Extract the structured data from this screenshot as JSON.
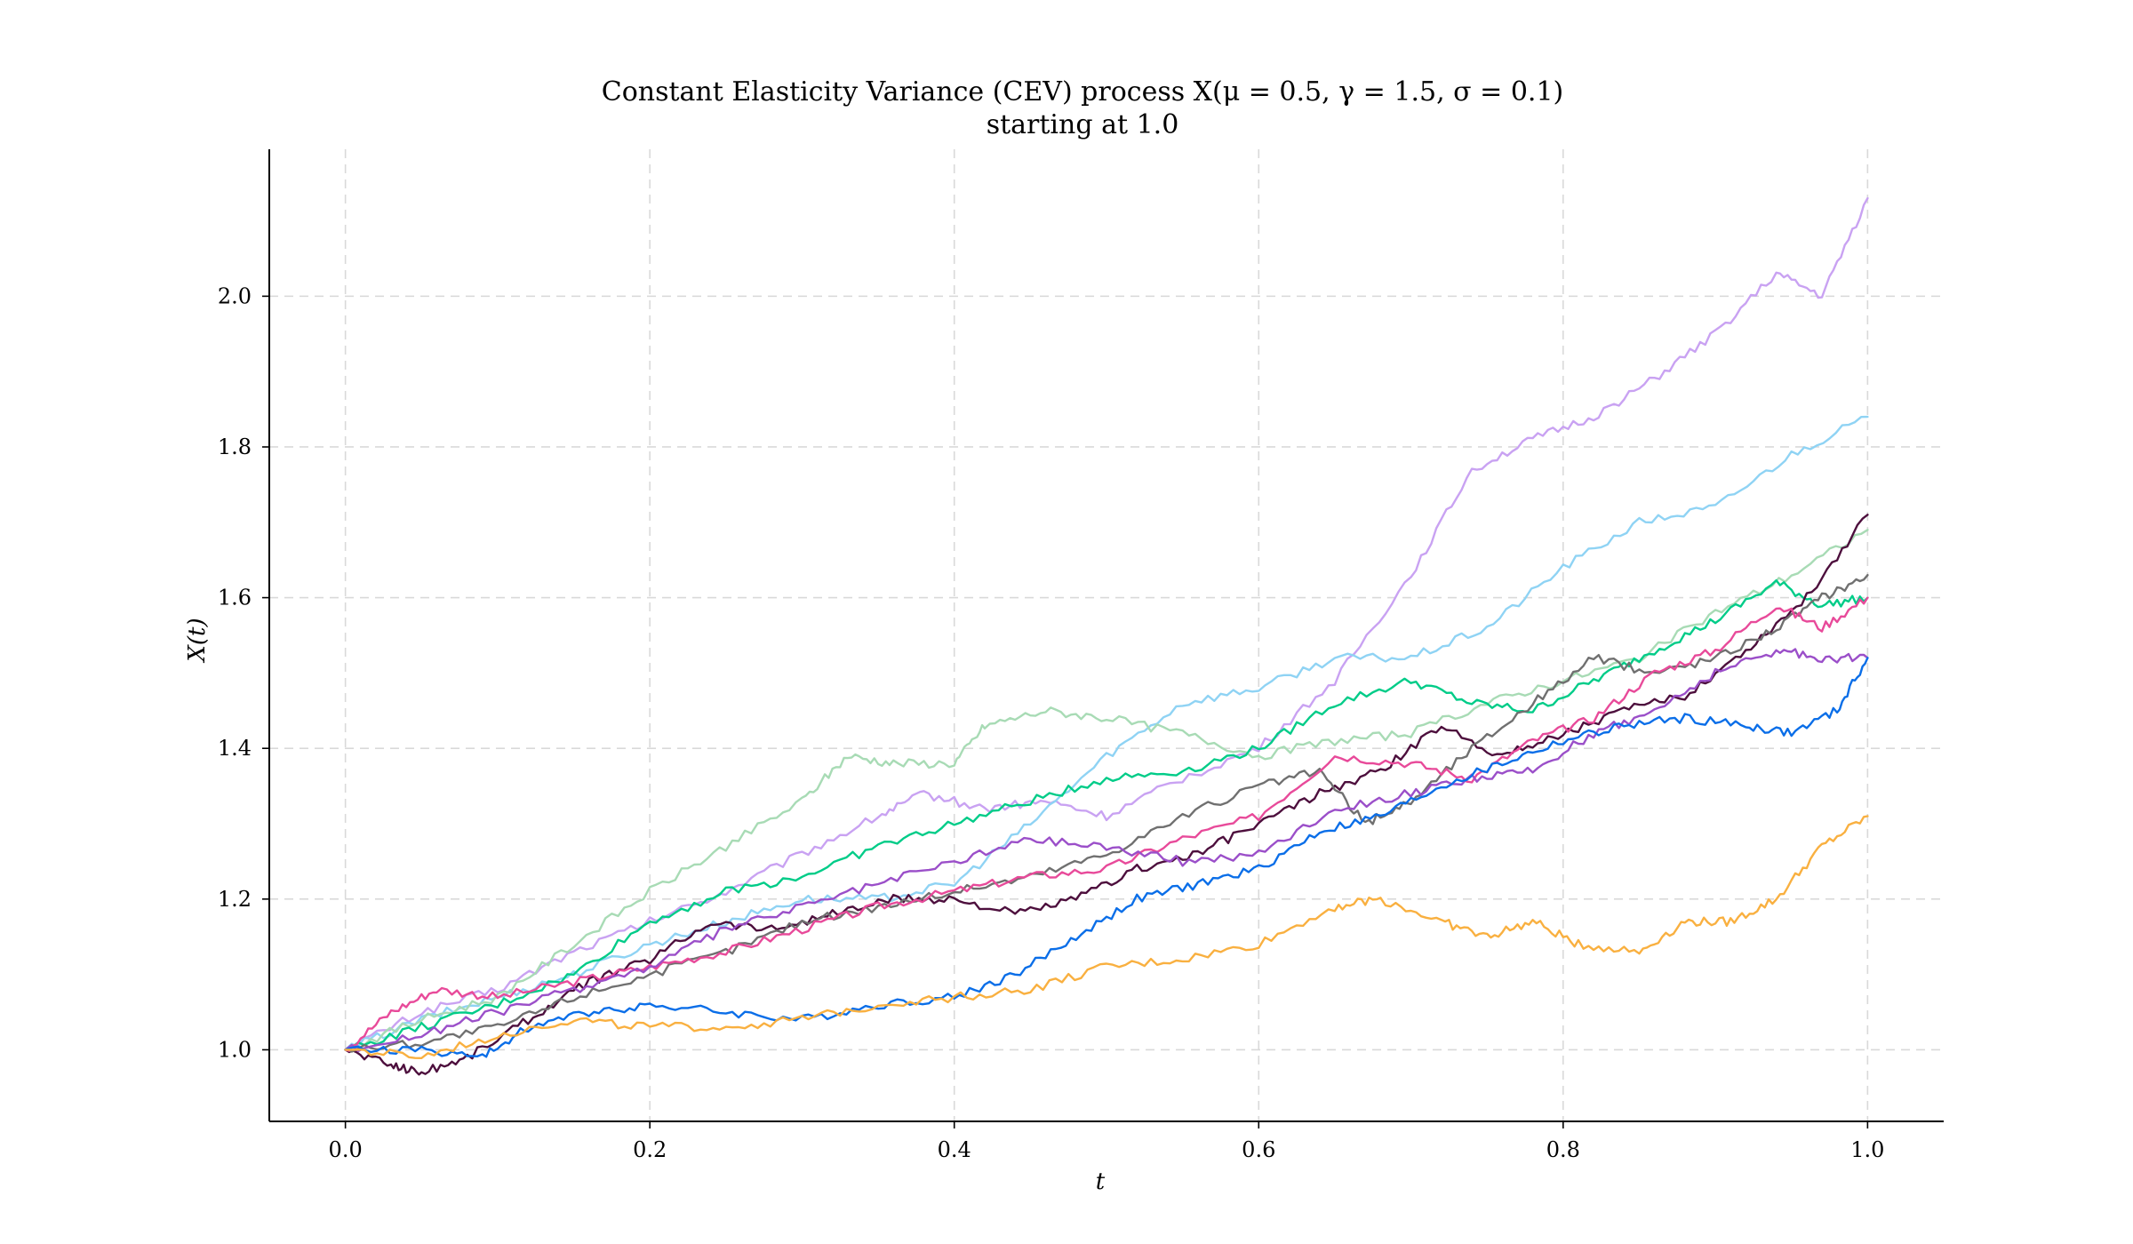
{
  "chart_data": {
    "type": "line",
    "title_line1": "Constant Elasticity Variance (CEV) process X(μ = 0.5, γ = 1.5, σ = 0.1)",
    "title_line2": "starting at 1.0",
    "xlabel": "t",
    "ylabel": "X(t)",
    "xlim": [
      -0.05,
      1.05
    ],
    "ylim": [
      0.905,
      2.195
    ],
    "xticks": [
      0.0,
      0.2,
      0.4,
      0.6,
      0.8,
      1.0
    ],
    "xtick_labels": [
      "0.0",
      "0.2",
      "0.4",
      "0.6",
      "0.8",
      "1.0"
    ],
    "yticks": [
      1.0,
      1.2,
      1.4,
      1.6,
      1.8,
      2.0
    ],
    "ytick_labels": [
      "1.0",
      "1.2",
      "1.4",
      "1.6",
      "1.8",
      "2.0"
    ],
    "grid": true,
    "legend": "none",
    "series": [
      {
        "color": "#c9a2f2",
        "points": [
          [
            0,
            1.0
          ],
          [
            0.05,
            1.05
          ],
          [
            0.1,
            1.08
          ],
          [
            0.15,
            1.13
          ],
          [
            0.2,
            1.17
          ],
          [
            0.25,
            1.21
          ],
          [
            0.3,
            1.26
          ],
          [
            0.35,
            1.31
          ],
          [
            0.38,
            1.34
          ],
          [
            0.42,
            1.32
          ],
          [
            0.46,
            1.33
          ],
          [
            0.5,
            1.31
          ],
          [
            0.55,
            1.36
          ],
          [
            0.6,
            1.4
          ],
          [
            0.65,
            1.49
          ],
          [
            0.7,
            1.63
          ],
          [
            0.74,
            1.77
          ],
          [
            0.78,
            1.81
          ],
          [
            0.82,
            1.84
          ],
          [
            0.86,
            1.89
          ],
          [
            0.9,
            1.95
          ],
          [
            0.94,
            2.03
          ],
          [
            0.97,
            2.0
          ],
          [
            1.0,
            2.13
          ]
        ]
      },
      {
        "color": "#8fd3f4",
        "points": [
          [
            0,
            1.0
          ],
          [
            0.05,
            1.04
          ],
          [
            0.1,
            1.07
          ],
          [
            0.15,
            1.1
          ],
          [
            0.2,
            1.14
          ],
          [
            0.25,
            1.17
          ],
          [
            0.3,
            1.2
          ],
          [
            0.35,
            1.2
          ],
          [
            0.4,
            1.22
          ],
          [
            0.45,
            1.3
          ],
          [
            0.5,
            1.39
          ],
          [
            0.55,
            1.46
          ],
          [
            0.6,
            1.48
          ],
          [
            0.65,
            1.52
          ],
          [
            0.7,
            1.52
          ],
          [
            0.75,
            1.56
          ],
          [
            0.8,
            1.64
          ],
          [
            0.85,
            1.7
          ],
          [
            0.9,
            1.72
          ],
          [
            0.95,
            1.79
          ],
          [
            1.0,
            1.84
          ]
        ]
      },
      {
        "color": "#a8dbb5",
        "points": [
          [
            0,
            1.0
          ],
          [
            0.05,
            1.04
          ],
          [
            0.1,
            1.07
          ],
          [
            0.15,
            1.14
          ],
          [
            0.2,
            1.21
          ],
          [
            0.25,
            1.27
          ],
          [
            0.3,
            1.33
          ],
          [
            0.33,
            1.39
          ],
          [
            0.36,
            1.38
          ],
          [
            0.4,
            1.38
          ],
          [
            0.42,
            1.43
          ],
          [
            0.46,
            1.45
          ],
          [
            0.5,
            1.44
          ],
          [
            0.55,
            1.42
          ],
          [
            0.6,
            1.39
          ],
          [
            0.65,
            1.41
          ],
          [
            0.7,
            1.42
          ],
          [
            0.75,
            1.46
          ],
          [
            0.8,
            1.49
          ],
          [
            0.85,
            1.52
          ],
          [
            0.9,
            1.58
          ],
          [
            0.95,
            1.63
          ],
          [
            1.0,
            1.69
          ]
        ]
      },
      {
        "color": "#00cc88",
        "points": [
          [
            0,
            1.0
          ],
          [
            0.05,
            1.03
          ],
          [
            0.1,
            1.06
          ],
          [
            0.15,
            1.1
          ],
          [
            0.2,
            1.17
          ],
          [
            0.25,
            1.21
          ],
          [
            0.3,
            1.23
          ],
          [
            0.35,
            1.27
          ],
          [
            0.4,
            1.3
          ],
          [
            0.45,
            1.33
          ],
          [
            0.5,
            1.36
          ],
          [
            0.55,
            1.37
          ],
          [
            0.6,
            1.4
          ],
          [
            0.65,
            1.46
          ],
          [
            0.7,
            1.49
          ],
          [
            0.74,
            1.46
          ],
          [
            0.78,
            1.45
          ],
          [
            0.82,
            1.49
          ],
          [
            0.86,
            1.53
          ],
          [
            0.9,
            1.57
          ],
          [
            0.94,
            1.62
          ],
          [
            0.97,
            1.59
          ],
          [
            1.0,
            1.6
          ]
        ]
      },
      {
        "color": "#4d0f3d",
        "points": [
          [
            0,
            1.0
          ],
          [
            0.03,
            0.98
          ],
          [
            0.05,
            0.97
          ],
          [
            0.08,
            0.99
          ],
          [
            0.12,
            1.04
          ],
          [
            0.16,
            1.09
          ],
          [
            0.2,
            1.12
          ],
          [
            0.24,
            1.17
          ],
          [
            0.28,
            1.16
          ],
          [
            0.32,
            1.18
          ],
          [
            0.36,
            1.2
          ],
          [
            0.4,
            1.2
          ],
          [
            0.44,
            1.18
          ],
          [
            0.48,
            1.2
          ],
          [
            0.52,
            1.24
          ],
          [
            0.56,
            1.26
          ],
          [
            0.6,
            1.3
          ],
          [
            0.64,
            1.34
          ],
          [
            0.68,
            1.37
          ],
          [
            0.72,
            1.43
          ],
          [
            0.76,
            1.39
          ],
          [
            0.8,
            1.42
          ],
          [
            0.84,
            1.45
          ],
          [
            0.88,
            1.47
          ],
          [
            0.92,
            1.53
          ],
          [
            0.96,
            1.6
          ],
          [
            1.0,
            1.71
          ]
        ]
      },
      {
        "color": "#707070",
        "points": [
          [
            0,
            1.0
          ],
          [
            0.05,
            1.01
          ],
          [
            0.1,
            1.03
          ],
          [
            0.15,
            1.07
          ],
          [
            0.2,
            1.1
          ],
          [
            0.25,
            1.13
          ],
          [
            0.3,
            1.17
          ],
          [
            0.35,
            1.19
          ],
          [
            0.4,
            1.21
          ],
          [
            0.45,
            1.23
          ],
          [
            0.5,
            1.26
          ],
          [
            0.55,
            1.31
          ],
          [
            0.6,
            1.35
          ],
          [
            0.64,
            1.37
          ],
          [
            0.67,
            1.3
          ],
          [
            0.7,
            1.33
          ],
          [
            0.74,
            1.4
          ],
          [
            0.78,
            1.46
          ],
          [
            0.82,
            1.52
          ],
          [
            0.86,
            1.5
          ],
          [
            0.9,
            1.52
          ],
          [
            0.94,
            1.56
          ],
          [
            0.97,
            1.6
          ],
          [
            1.0,
            1.63
          ]
        ]
      },
      {
        "color": "#e84a9a",
        "points": [
          [
            0,
            1.0
          ],
          [
            0.03,
            1.05
          ],
          [
            0.06,
            1.08
          ],
          [
            0.1,
            1.07
          ],
          [
            0.15,
            1.09
          ],
          [
            0.2,
            1.11
          ],
          [
            0.25,
            1.13
          ],
          [
            0.3,
            1.16
          ],
          [
            0.35,
            1.19
          ],
          [
            0.4,
            1.21
          ],
          [
            0.45,
            1.23
          ],
          [
            0.5,
            1.24
          ],
          [
            0.55,
            1.28
          ],
          [
            0.6,
            1.31
          ],
          [
            0.65,
            1.39
          ],
          [
            0.7,
            1.38
          ],
          [
            0.74,
            1.36
          ],
          [
            0.78,
            1.41
          ],
          [
            0.82,
            1.44
          ],
          [
            0.86,
            1.5
          ],
          [
            0.9,
            1.53
          ],
          [
            0.94,
            1.59
          ],
          [
            0.97,
            1.56
          ],
          [
            1.0,
            1.6
          ]
        ]
      },
      {
        "color": "#9b4fc9",
        "points": [
          [
            0,
            1.0
          ],
          [
            0.05,
            1.02
          ],
          [
            0.1,
            1.05
          ],
          [
            0.15,
            1.08
          ],
          [
            0.2,
            1.11
          ],
          [
            0.25,
            1.16
          ],
          [
            0.3,
            1.19
          ],
          [
            0.35,
            1.22
          ],
          [
            0.4,
            1.25
          ],
          [
            0.45,
            1.28
          ],
          [
            0.5,
            1.27
          ],
          [
            0.55,
            1.25
          ],
          [
            0.6,
            1.26
          ],
          [
            0.65,
            1.32
          ],
          [
            0.7,
            1.34
          ],
          [
            0.74,
            1.36
          ],
          [
            0.78,
            1.37
          ],
          [
            0.82,
            1.42
          ],
          [
            0.86,
            1.45
          ],
          [
            0.9,
            1.5
          ],
          [
            0.94,
            1.53
          ],
          [
            0.97,
            1.52
          ],
          [
            1.0,
            1.52
          ]
        ]
      },
      {
        "color": "#0a6ee8",
        "points": [
          [
            0,
            1.0
          ],
          [
            0.05,
            1.0
          ],
          [
            0.09,
            0.99
          ],
          [
            0.12,
            1.03
          ],
          [
            0.16,
            1.05
          ],
          [
            0.2,
            1.06
          ],
          [
            0.25,
            1.05
          ],
          [
            0.3,
            1.04
          ],
          [
            0.35,
            1.06
          ],
          [
            0.4,
            1.07
          ],
          [
            0.44,
            1.1
          ],
          [
            0.48,
            1.15
          ],
          [
            0.52,
            1.2
          ],
          [
            0.56,
            1.22
          ],
          [
            0.6,
            1.24
          ],
          [
            0.64,
            1.29
          ],
          [
            0.68,
            1.31
          ],
          [
            0.72,
            1.35
          ],
          [
            0.76,
            1.38
          ],
          [
            0.8,
            1.41
          ],
          [
            0.84,
            1.43
          ],
          [
            0.88,
            1.44
          ],
          [
            0.92,
            1.43
          ],
          [
            0.95,
            1.42
          ],
          [
            0.98,
            1.45
          ],
          [
            1.0,
            1.52
          ]
        ]
      },
      {
        "color": "#f9b040",
        "points": [
          [
            0,
            1.0
          ],
          [
            0.05,
            0.99
          ],
          [
            0.1,
            1.02
          ],
          [
            0.15,
            1.04
          ],
          [
            0.2,
            1.03
          ],
          [
            0.25,
            1.03
          ],
          [
            0.3,
            1.04
          ],
          [
            0.35,
            1.06
          ],
          [
            0.4,
            1.07
          ],
          [
            0.45,
            1.08
          ],
          [
            0.5,
            1.11
          ],
          [
            0.55,
            1.12
          ],
          [
            0.6,
            1.14
          ],
          [
            0.65,
            1.19
          ],
          [
            0.68,
            1.2
          ],
          [
            0.72,
            1.17
          ],
          [
            0.75,
            1.15
          ],
          [
            0.78,
            1.17
          ],
          [
            0.81,
            1.14
          ],
          [
            0.85,
            1.13
          ],
          [
            0.88,
            1.17
          ],
          [
            0.91,
            1.17
          ],
          [
            0.94,
            1.2
          ],
          [
            0.97,
            1.27
          ],
          [
            1.0,
            1.31
          ]
        ]
      }
    ]
  }
}
